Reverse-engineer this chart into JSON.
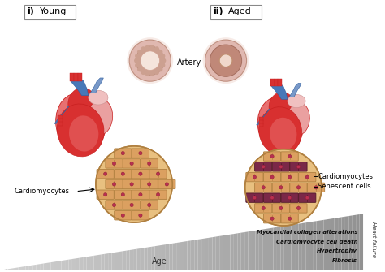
{
  "title_young": "Young",
  "title_aged": "Aged",
  "label_i": "i)",
  "label_ii": "ii)",
  "label_artery": "Artery",
  "label_age": "Age",
  "label_cardiomyocytes_young": "Cardiomyocytes",
  "label_cardiomyocytes_aged": "Cardiomyocytes",
  "label_senescent": "Senescent cells",
  "label_heart_failure": "Heart failure",
  "text_lines": [
    "Fibrosis",
    "Hypertrophy",
    "Cardiomyocyte cell death",
    "Myocardial collagen alterations"
  ],
  "bg_color": "#ffffff",
  "heart_red_dark": "#c82020",
  "heart_red": "#d83030",
  "heart_red_light": "#e87070",
  "heart_pink": "#eaa0a0",
  "heart_pink_light": "#f0c0c0",
  "heart_blue_dark": "#3060a0",
  "heart_blue": "#4878b8",
  "heart_blue_light": "#7898c8",
  "heart_blue_pale": "#a8c0d8",
  "artery_outer": "#e8c0b8",
  "artery_wall_young": "#d09090",
  "artery_lumen_young": "#f0d8d0",
  "artery_wall_aged": "#b87060",
  "artery_lumen_aged": "#e8c8b8",
  "cell_fill": "#dba060",
  "cell_edge": "#b08040",
  "cell_bg": "#e8c080",
  "senescent_fill": "#7a2848",
  "senescent_edge": "#501828",
  "dot_color": "#b83050",
  "dot_edge": "#881830",
  "wedge_color_light": "#c8c8c8",
  "wedge_color_dark": "#888888"
}
